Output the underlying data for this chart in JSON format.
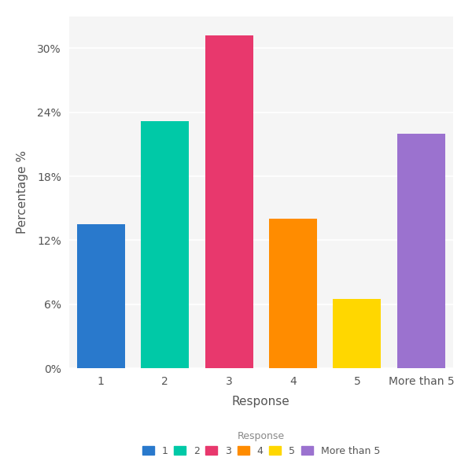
{
  "categories": [
    "1",
    "2",
    "3",
    "4",
    "5",
    "More than 5"
  ],
  "values": [
    13.5,
    23.2,
    31.2,
    14.0,
    6.5,
    22.0
  ],
  "colors": [
    "#2979CC",
    "#00C9A7",
    "#E8386D",
    "#FF8C00",
    "#FFD700",
    "#9B72CF"
  ],
  "xlabel": "Response",
  "ylabel": "Percentage %",
  "yticks": [
    0,
    6,
    12,
    18,
    24,
    30
  ],
  "ytick_labels": [
    "0%",
    "6%",
    "12%",
    "18%",
    "24%",
    "30%"
  ],
  "ylim": [
    0,
    33
  ],
  "legend_title": "Response",
  "legend_labels": [
    "1",
    "2",
    "3",
    "4",
    "5",
    "More than 5"
  ],
  "background_color": "#ffffff",
  "plot_bg_color": "#f5f5f5",
  "grid_color": "#ffffff",
  "title_color": "#555555",
  "label_color": "#555555",
  "tick_color": "#555555"
}
